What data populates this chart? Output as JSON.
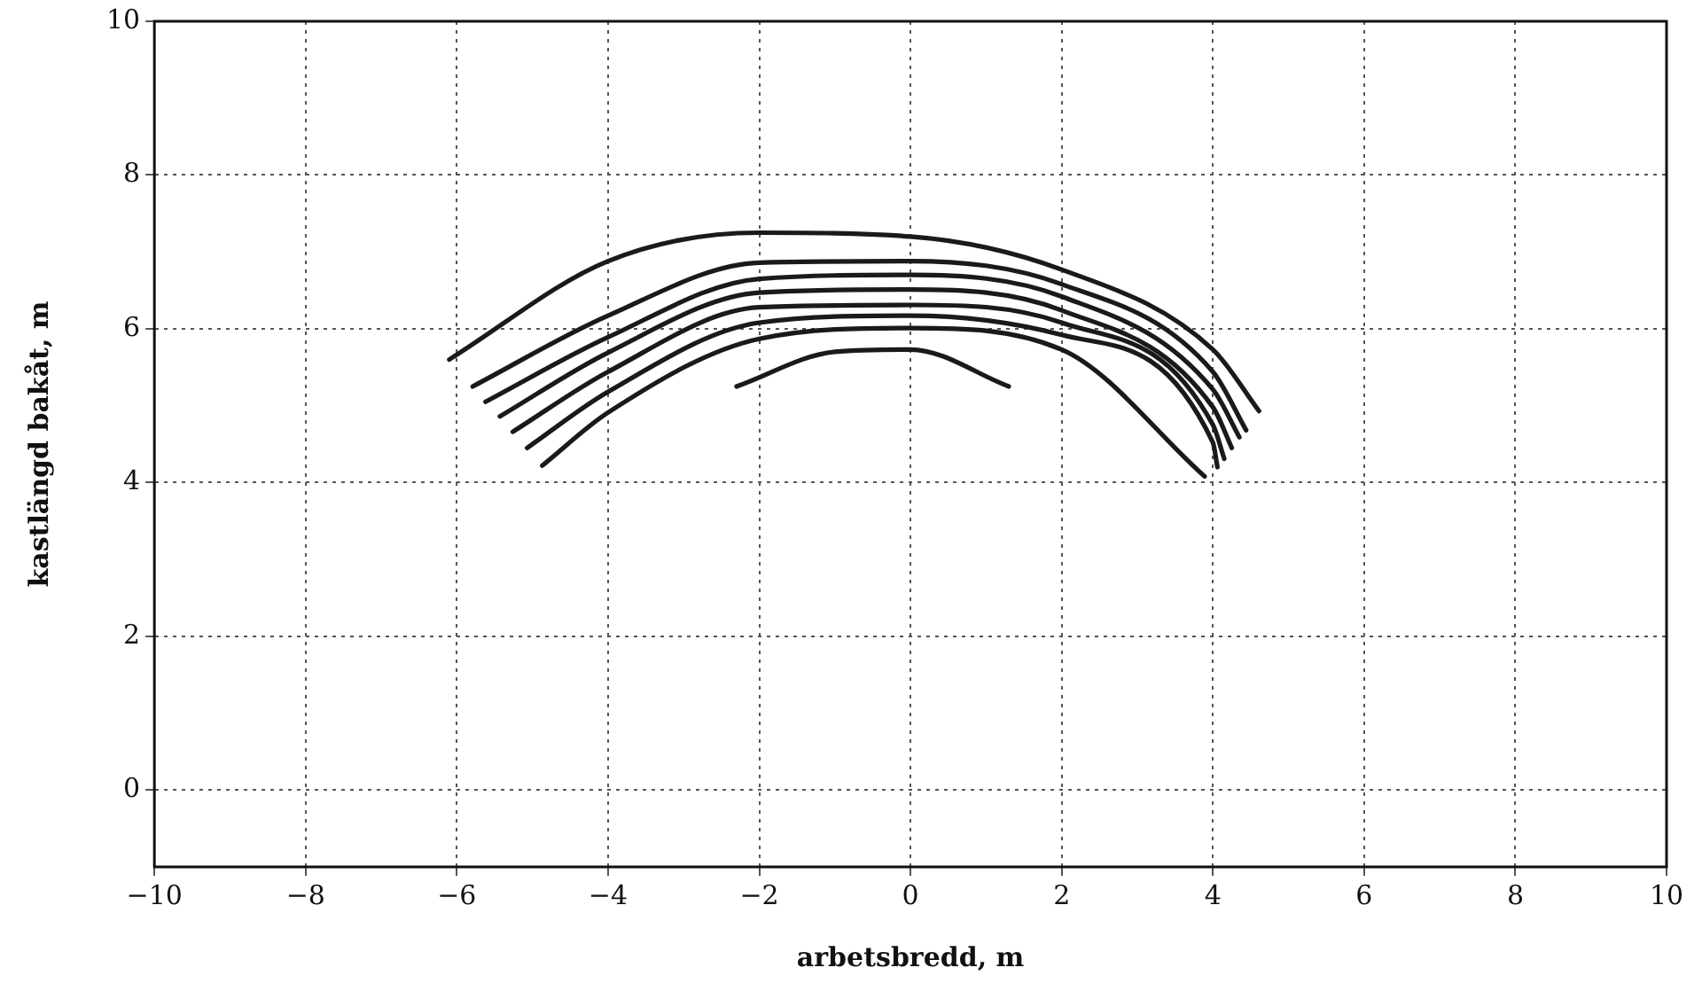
{
  "chart_data": {
    "type": "line",
    "xlabel": "arbetsbredd, m",
    "ylabel": "kastlängd bakåt, m",
    "xlim": [
      -10,
      10
    ],
    "ylim": [
      -1,
      10
    ],
    "xticks": [
      -10,
      -8,
      -6,
      -4,
      -2,
      0,
      2,
      4,
      6,
      8,
      10
    ],
    "yticks": [
      0,
      2,
      4,
      6,
      8,
      10
    ],
    "grid": true,
    "legend": false,
    "marker": "none",
    "line_style": "solid",
    "series": [
      {
        "color": "#1a1a1a",
        "x": [
          -6.1,
          -4,
          -2,
          0,
          2,
          4,
          4.61
        ],
        "values": [
          5.6,
          6.88,
          7.25,
          7.2,
          6.77,
          5.73,
          4.93
        ]
      },
      {
        "color": "#1a1a1a",
        "x": [
          -5.79,
          -4,
          -2,
          0,
          2,
          4,
          4.44
        ],
        "values": [
          5.25,
          6.17,
          6.86,
          6.88,
          6.58,
          5.44,
          4.68
        ]
      },
      {
        "color": "#1a1a1a",
        "x": [
          -5.62,
          -4,
          -2,
          0,
          2,
          4,
          4.35
        ],
        "values": [
          5.05,
          5.89,
          6.65,
          6.7,
          6.42,
          5.21,
          4.59
        ]
      },
      {
        "color": "#1a1a1a",
        "x": [
          -5.43,
          -4,
          -2,
          0,
          2,
          4,
          4.25
        ],
        "values": [
          4.86,
          5.69,
          6.47,
          6.51,
          6.24,
          4.98,
          4.45
        ]
      },
      {
        "color": "#1a1a1a",
        "x": [
          -5.26,
          -4,
          -2,
          0,
          2,
          4,
          4.15
        ],
        "values": [
          4.66,
          5.44,
          6.28,
          6.31,
          6.08,
          4.75,
          4.31
        ]
      },
      {
        "color": "#1a1a1a",
        "x": [
          -5.07,
          -4,
          -2,
          0,
          2,
          4,
          4.06
        ],
        "values": [
          4.45,
          5.18,
          6.08,
          6.17,
          5.92,
          4.52,
          4.2
        ]
      },
      {
        "color": "#1a1a1a",
        "x": [
          -4.87,
          -4,
          -2,
          0,
          2,
          3.89
        ],
        "values": [
          4.22,
          4.91,
          5.87,
          6.01,
          5.73,
          4.08
        ]
      },
      {
        "color": "#1a1a1a",
        "x": [
          -2.3,
          -1,
          0,
          1.3
        ],
        "values": [
          5.25,
          5.7,
          5.73,
          5.25
        ]
      }
    ]
  }
}
